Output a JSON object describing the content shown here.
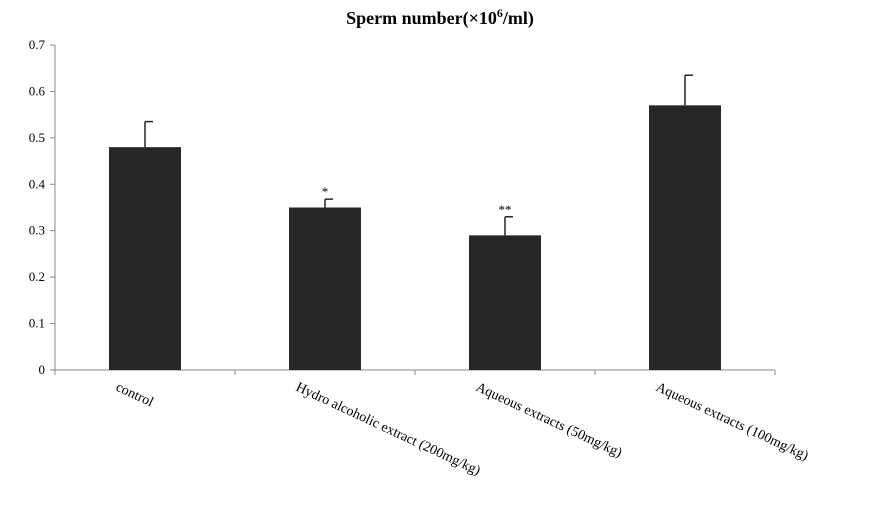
{
  "chart_data": {
    "type": "bar",
    "title_main": "Sperm number(×10",
    "title_sup": "6",
    "title_end": "/ml)",
    "xlabel": "",
    "ylabel": "",
    "ylim": [
      0,
      0.7
    ],
    "yticks": [
      "0",
      "0.1",
      "0.2",
      "0.3",
      "0.4",
      "0.5",
      "0.6",
      "0.7"
    ],
    "categories": [
      "control",
      "Hydro alcoholic extract (200mg/kg)",
      "Aqueous extracts (50mg/kg)",
      "Aqueous extracts (100mg/kg)"
    ],
    "values": [
      0.48,
      0.35,
      0.29,
      0.57
    ],
    "errors": [
      0.055,
      0.018,
      0.04,
      0.065
    ],
    "significance": [
      "",
      "*",
      "**",
      ""
    ],
    "bar_color": "#262626",
    "grid": false,
    "legend": "none"
  }
}
